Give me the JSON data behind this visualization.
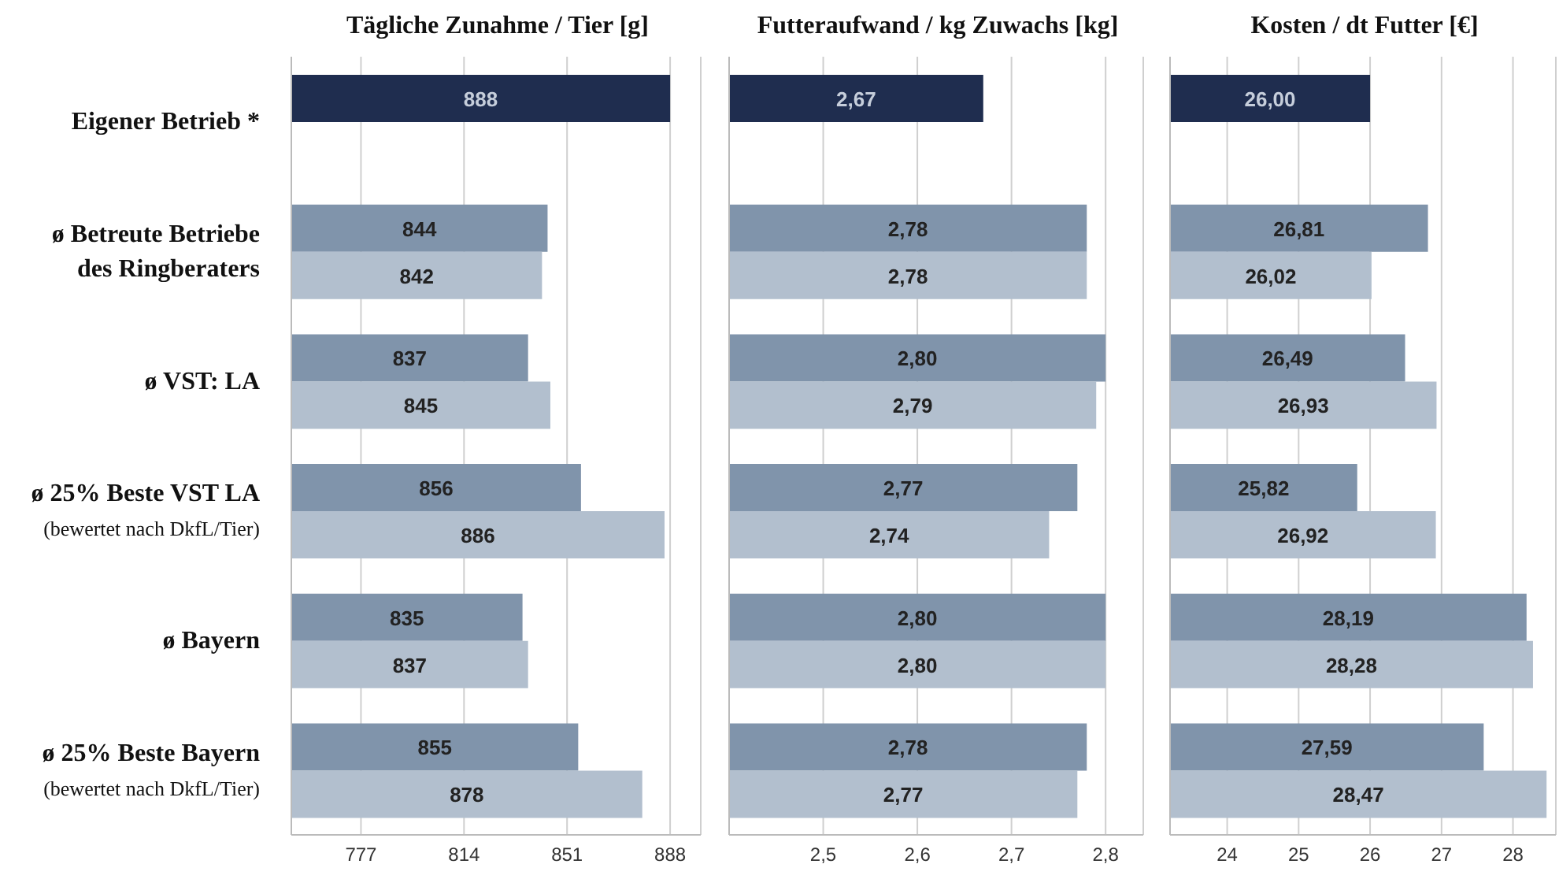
{
  "chart_data": [
    {
      "type": "bar",
      "orientation": "horizontal",
      "title": "Tägliche Zunahme / Tier [g]",
      "categories": [
        "Eigener Betrieb *",
        "ø Betreute Betriebe\ndes Ringberaters",
        "ø VST: LA",
        "ø 25% Beste VST LA\n(bewertet nach DkfL/Tier)",
        "ø Bayern",
        "ø 25% Beste Bayern\n(bewertet nach DkfL/Tier)"
      ],
      "series": [
        {
          "colors": [
            "#1f2d4f",
            "#8094ab",
            "#8094ab",
            "#8094ab",
            "#8094ab",
            "#8094ab"
          ],
          "values": [
            888,
            844,
            837,
            856,
            835,
            855
          ],
          "value_labels": [
            "888",
            "844",
            "837",
            "856",
            "835",
            "855"
          ]
        },
        {
          "color": "#b2bfce",
          "values": [
            null,
            842,
            845,
            886,
            837,
            878
          ],
          "value_labels": [
            null,
            "842",
            "845",
            "886",
            "837",
            "878"
          ]
        }
      ],
      "xlim": [
        752,
        899
      ],
      "xticks": [
        777,
        814,
        851,
        888
      ],
      "grid": "x"
    },
    {
      "type": "bar",
      "orientation": "horizontal",
      "title": "Futteraufwand / kg Zuwachs [kg]",
      "series": [
        {
          "colors": [
            "#1f2d4f",
            "#8094ab",
            "#8094ab",
            "#8094ab",
            "#8094ab",
            "#8094ab"
          ],
          "values": [
            2.67,
            2.78,
            2.8,
            2.77,
            2.8,
            2.78
          ],
          "value_labels": [
            "2,67",
            "2,78",
            "2,80",
            "2,77",
            "2,80",
            "2,78"
          ]
        },
        {
          "color": "#b2bfce",
          "values": [
            null,
            2.78,
            2.79,
            2.74,
            2.8,
            2.77
          ],
          "value_labels": [
            null,
            "2,78",
            "2,79",
            "2,74",
            "2,80",
            "2,77"
          ]
        }
      ],
      "xlim": [
        2.4,
        2.84
      ],
      "xticks": [
        {
          "value": 2.5,
          "label": "2,5"
        },
        {
          "value": 2.6,
          "label": "2,6"
        },
        {
          "value": 2.7,
          "label": "2,7"
        },
        {
          "value": 2.8,
          "label": "2,8"
        }
      ],
      "grid": "x",
      "tick_labels": "x"
    },
    {
      "type": "bar",
      "orientation": "horizontal",
      "title": "Kosten / dt Futter [€]",
      "series": [
        {
          "colors": [
            "#1f2d4f",
            "#8094ab",
            "#8094ab",
            "#8094ab",
            "#8094ab",
            "#8094ab"
          ],
          "values": [
            26.0,
            26.81,
            26.49,
            25.82,
            28.19,
            27.59
          ],
          "value_labels": [
            "26,00",
            "26,81",
            "26,49",
            "25,82",
            "28,19",
            "27,59"
          ]
        },
        {
          "color": "#b2bfce",
          "values": [
            null,
            26.02,
            26.93,
            26.92,
            28.28,
            28.47
          ],
          "value_labels": [
            null,
            "26,02",
            "26,93",
            "26,92",
            "28,28",
            "28,47"
          ]
        }
      ],
      "xlim": [
        23.2,
        28.6
      ],
      "xticks": [
        24,
        25,
        26,
        27,
        28
      ],
      "grid": "x",
      "tick_labels": "x"
    }
  ]
}
